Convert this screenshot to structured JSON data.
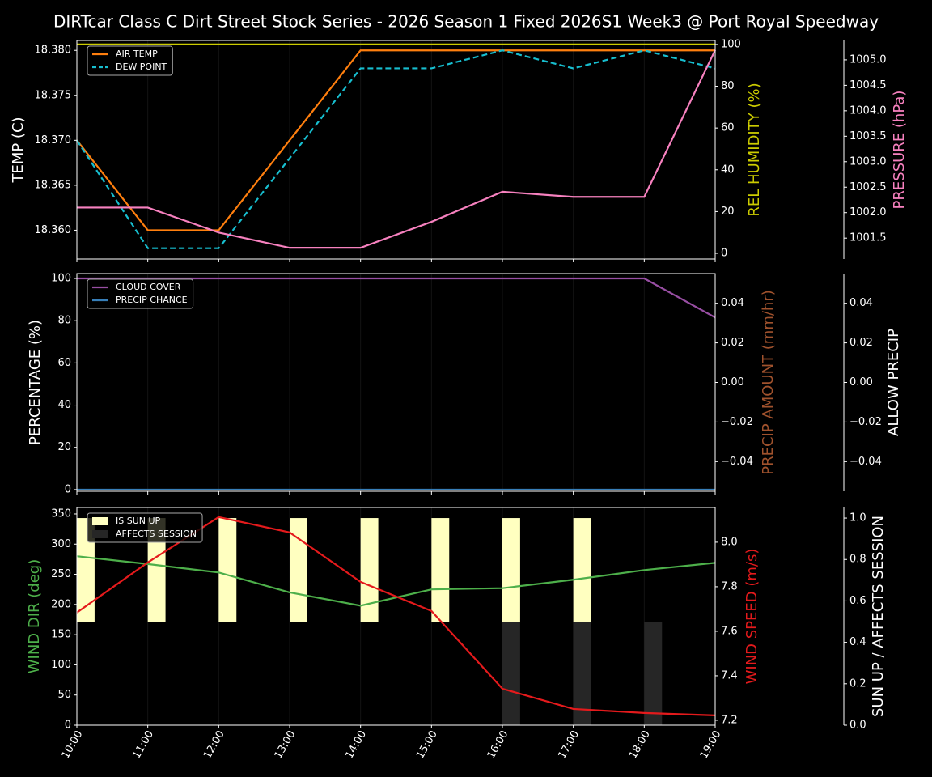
{
  "title": "DIRTcar Class C Dirt Street Stock Series - 2026 Season 1 Fixed 2026S1 Week3 @ Port Royal Speedway",
  "chart_data": [
    {
      "type": "line",
      "legend": "upper left",
      "grid": true,
      "ylabel": "TEMP (C)",
      "ylim": [
        18.3568,
        18.3811
      ],
      "yticks": [
        {
          "value": 18.36,
          "label": "18.360"
        },
        {
          "value": 18.365,
          "label": "18.365"
        },
        {
          "value": 18.37,
          "label": "18.370"
        },
        {
          "value": 18.375,
          "label": "18.375"
        },
        {
          "value": 18.38,
          "label": "18.380"
        }
      ],
      "y2label": "REL HUMIDITY (%)",
      "y2color": "#cccc00",
      "y2lim": [
        -2.7,
        101.9
      ],
      "y2ticks": [
        0,
        20,
        40,
        60,
        80,
        100
      ],
      "y3label": "PRESSURE (hPa)",
      "y3color": "#f781bf",
      "y3lim": [
        1001.09,
        1005.38
      ],
      "y3ticks": [
        1001.5,
        {
          "value": 1002,
          "label": "1002.0"
        },
        1002.5,
        {
          "value": 1003,
          "label": "1003.0"
        },
        1003.5,
        {
          "value": 1004,
          "label": "1004.0"
        },
        1004.5,
        {
          "value": 1005,
          "label": "1005.0"
        }
      ],
      "series": [
        {
          "name": "AIR TEMP",
          "color": "#ff7f0e",
          "values": [
            18.37,
            18.36,
            18.36,
            18.37,
            18.38,
            18.38,
            18.38,
            18.38,
            18.38,
            18.38
          ]
        },
        {
          "name": "DEW POINT",
          "color": "#17becf",
          "linestyle": "dashed",
          "values": [
            18.37,
            18.358,
            18.358,
            18.368,
            18.378,
            18.378,
            18.38,
            18.378,
            18.38,
            18.378
          ]
        },
        {
          "color": "#cccc00",
          "axis": "y2",
          "values": [
            100,
            100,
            100,
            100,
            100,
            100,
            100,
            100,
            100,
            100
          ]
        },
        {
          "color": "#f781bf",
          "axis": "y3",
          "values": [
            1002.1,
            1002.1,
            1001.61,
            1001.31,
            1001.31,
            1001.82,
            1002.41,
            1002.31,
            1002.31,
            1005.19
          ]
        }
      ]
    },
    {
      "type": "line",
      "legend": "upper left",
      "grid": true,
      "ylabel": "PERCENTAGE (%)",
      "ylim": [
        -0.8,
        102.3
      ],
      "yticks": [
        0,
        20,
        40,
        60,
        80,
        100
      ],
      "y2label": "PRECIP AMOUNT (mm/hr)",
      "y2color": "#a0522d",
      "y2lim": [
        -0.055,
        0.055
      ],
      "y2ticks": [
        {
          "value": -0.04,
          "label": "−0.04"
        },
        {
          "value": -0.02,
          "label": "−0.02"
        },
        {
          "value": 0,
          "label": "0.00"
        },
        {
          "value": 0.02,
          "label": "0.02"
        },
        {
          "value": 0.04,
          "label": "0.04"
        }
      ],
      "y3label": "ALLOW PRECIP",
      "y3lim": [
        -0.055,
        0.055
      ],
      "y3ticks": [
        {
          "value": -0.04,
          "label": "−0.04"
        },
        {
          "value": -0.02,
          "label": "−0.02"
        },
        {
          "value": 0,
          "label": "0.00"
        },
        {
          "value": 0.02,
          "label": "0.02"
        },
        {
          "value": 0.04,
          "label": "0.04"
        }
      ],
      "series": [
        {
          "name": "CLOUD COVER",
          "color": "#984ea3",
          "values": [
            100,
            100,
            100,
            100,
            100,
            100,
            100,
            100,
            100,
            81.5
          ]
        },
        {
          "name": "PRECIP CHANCE",
          "color": "#377eb8",
          "values": [
            0,
            0,
            0,
            0,
            0,
            0,
            0,
            0,
            0,
            0
          ]
        }
      ]
    },
    {
      "type": "line",
      "legend": "upper left",
      "grid": true,
      "categories": [
        "10:00",
        "11:00",
        "12:00",
        "13:00",
        "14:00",
        "15:00",
        "16:00",
        "17:00",
        "18:00",
        "19:00"
      ],
      "ylabel": "WIND DIR (deg)",
      "ycolor": "#4daf4a",
      "ylim": [
        0,
        360.7
      ],
      "yticks": [
        0,
        50,
        100,
        150,
        200,
        250,
        300,
        350
      ],
      "y2label": "WIND SPEED (m/s)",
      "y2color": "#e41a1c",
      "y2lim": [
        7.178,
        8.156
      ],
      "y2ticks": [
        7.2,
        7.4,
        7.6,
        7.8,
        {
          "value": 8,
          "label": "8.0"
        }
      ],
      "y3label": "SUN UP / AFFECTS SESSION",
      "y3lim": [
        0,
        1.051
      ],
      "y3ticks": [
        {
          "value": 0,
          "label": "0.0"
        },
        0.2,
        0.4,
        0.6,
        0.8,
        {
          "value": 1,
          "label": "1.0"
        }
      ],
      "series": [
        {
          "name": "IS SUN UP",
          "type": "bar",
          "half": "upper",
          "color": "#ffffc0",
          "axis": "y3",
          "values": [
            1,
            1,
            1,
            1,
            1,
            1,
            1,
            1,
            0,
            0
          ]
        },
        {
          "name": "AFFECTS SESSION",
          "type": "bar",
          "half": "lower",
          "color": "#262626",
          "axis": "y3",
          "values": [
            0,
            0,
            0,
            0,
            0,
            0,
            1,
            1,
            1,
            0
          ]
        },
        {
          "color": "#4daf4a",
          "values": [
            280,
            267,
            253,
            220,
            198,
            225,
            227,
            241,
            257,
            269
          ]
        },
        {
          "color": "#e41a1c",
          "axis": "y2",
          "values": [
            7.684,
            7.909,
            8.113,
            8.044,
            7.822,
            7.691,
            7.342,
            7.251,
            7.233,
            7.222
          ]
        }
      ]
    }
  ]
}
